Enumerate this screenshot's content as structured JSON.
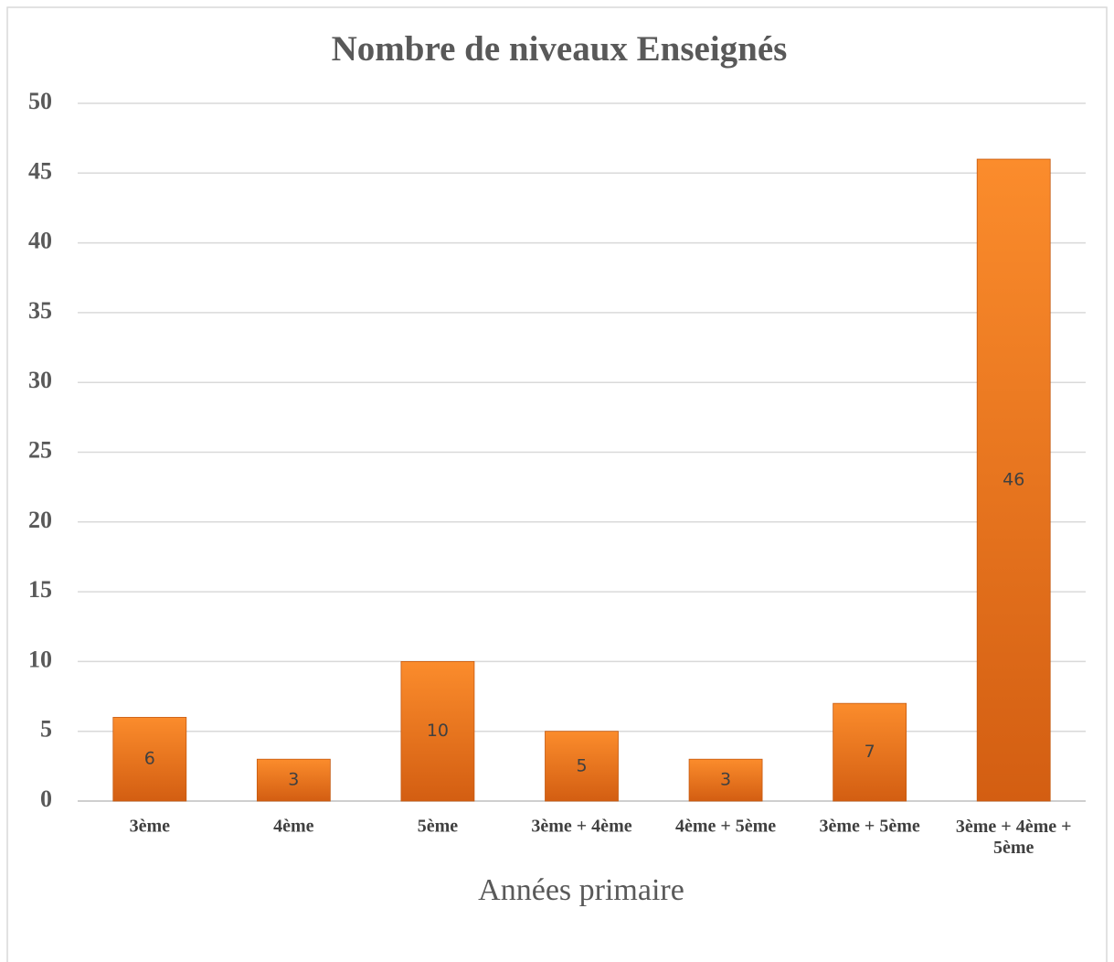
{
  "chart_data": {
    "type": "bar",
    "title": "Nombre de niveaux Enseignés",
    "x_label": "Années primaire",
    "categories": [
      "3ème",
      "4ème",
      "5ème",
      "3ème + 4ème",
      "4ème + 5ème",
      "3ème + 5ème",
      "3ème + 4ème + 5ème"
    ],
    "values": [
      6,
      3,
      10,
      5,
      3,
      7,
      46
    ],
    "color": "#ed7d31",
    "ylim": [
      0,
      50
    ],
    "yticks": [
      0,
      5,
      10,
      15,
      20,
      25,
      30,
      35,
      40,
      45,
      50
    ],
    "grid": true
  }
}
